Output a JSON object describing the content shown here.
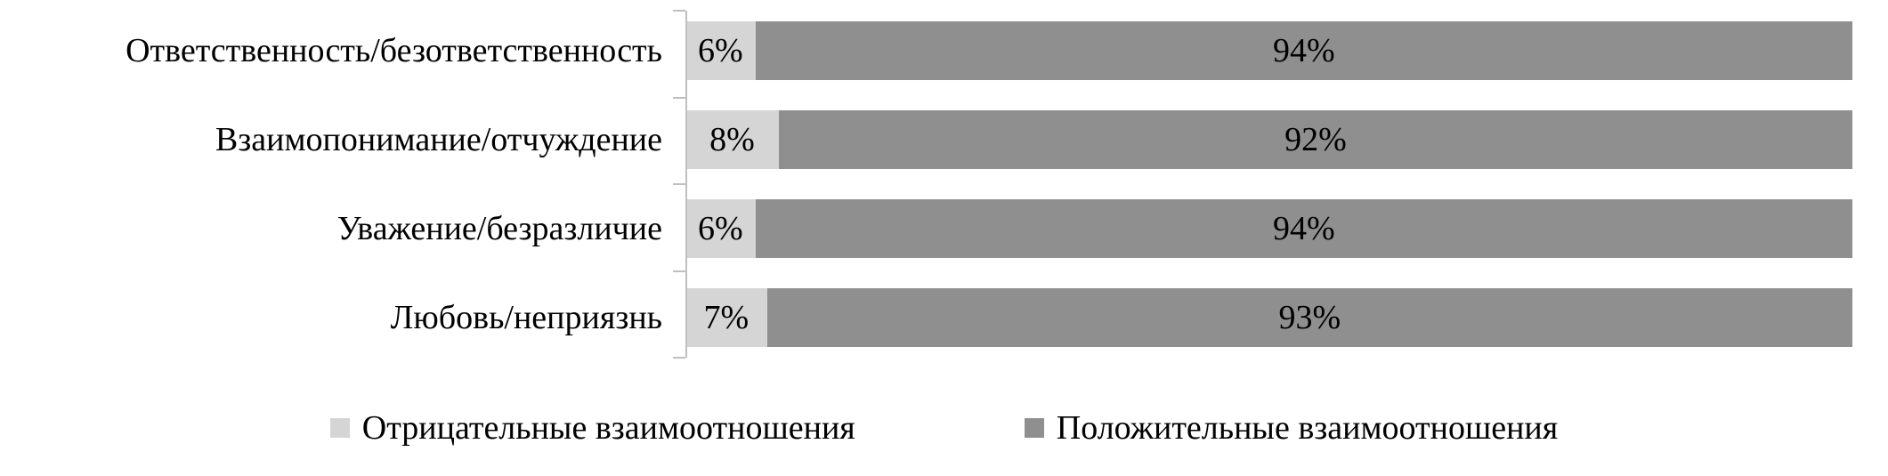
{
  "chart_data": {
    "type": "bar",
    "orientation": "horizontal",
    "stacked": true,
    "title": "",
    "categories": [
      "Ответственность/безответственность",
      "Взаимопонимание/отчуждение",
      "Уважение/безразличие",
      "Любовь/неприязнь"
    ],
    "series": [
      {
        "name": "Отрицательные взаимоотношения",
        "color": "#d5d5d5",
        "values": [
          6,
          8,
          6,
          7
        ],
        "labels": [
          "6%",
          "8%",
          "6%",
          "7%"
        ]
      },
      {
        "name": "Положительные взаимоотношения",
        "color": "#8f8f8f",
        "values": [
          94,
          92,
          94,
          93
        ],
        "labels": [
          "94%",
          "92%",
          "94%",
          "93%"
        ]
      }
    ],
    "value_format": "percent",
    "xlim": [
      0,
      100
    ],
    "grid": false,
    "legend_position": "bottom"
  },
  "colors": {
    "background": "#ffffff",
    "text": "#000000",
    "axis_line": "#bfbfbf"
  }
}
